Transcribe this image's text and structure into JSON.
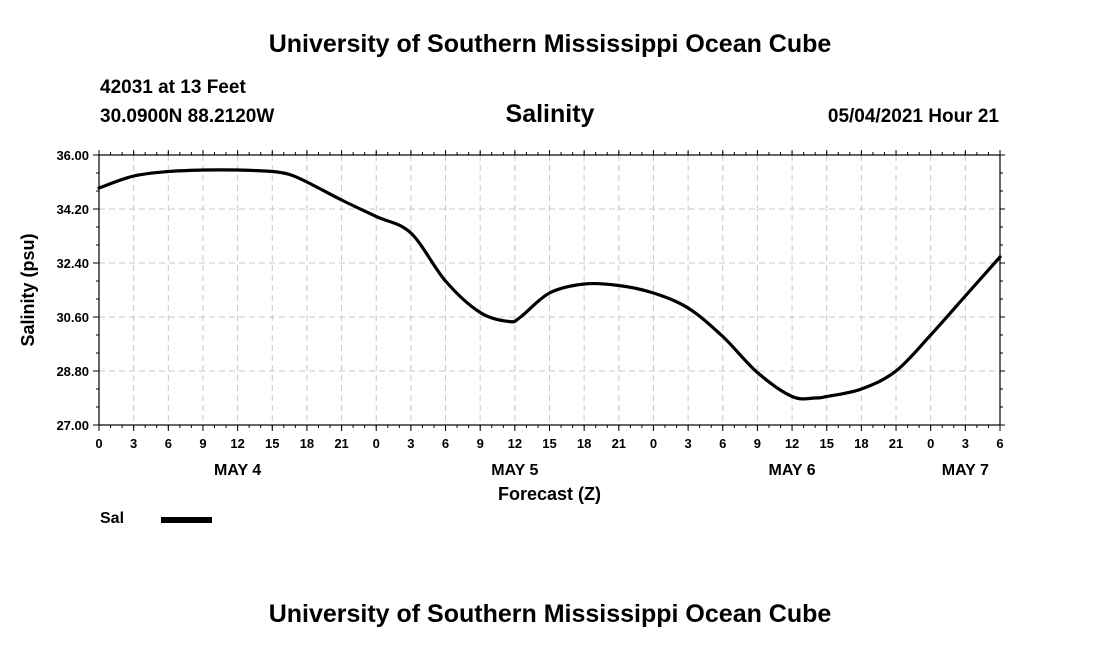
{
  "header": {
    "title": "University of Southern Mississippi Ocean Cube",
    "station": "42031 at 13 Feet",
    "coords": "30.0900N  88.2120W",
    "timestamp": "05/04/2021 Hour 21",
    "footer": "University of Southern Mississippi Ocean Cube"
  },
  "chart_data": {
    "type": "line",
    "title": "Salinity",
    "xlabel": "Forecast (Z)",
    "ylabel": "Salinity (psu)",
    "ylim": [
      27.0,
      36.0
    ],
    "yticks": [
      "27.00",
      "28.80",
      "30.60",
      "32.40",
      "34.20",
      "36.00"
    ],
    "xlim": [
      0,
      78
    ],
    "xtick_step_hours": 3,
    "xtick_labels": [
      "0",
      "3",
      "6",
      "9",
      "12",
      "15",
      "18",
      "21",
      "0",
      "3",
      "6",
      "9",
      "12",
      "15",
      "18",
      "21",
      "0",
      "3",
      "6",
      "9",
      "12",
      "15",
      "18",
      "21",
      "0",
      "3",
      "6"
    ],
    "day_labels": [
      {
        "label": "MAY 4",
        "hour": 12
      },
      {
        "label": "MAY 5",
        "hour": 36
      },
      {
        "label": "MAY 6",
        "hour": 60
      },
      {
        "label": "MAY 7",
        "hour": 75
      }
    ],
    "grid": true,
    "series": [
      {
        "name": "Sal",
        "color": "#000000",
        "x": [
          0,
          3,
          6,
          9,
          12,
          15,
          16.5,
          18,
          21,
          24,
          27,
          30,
          33,
          35.5,
          36.5,
          39,
          42,
          45,
          48,
          51,
          54,
          57,
          60,
          62,
          63,
          66,
          69,
          72,
          75,
          78
        ],
        "y": [
          34.9,
          35.3,
          35.45,
          35.5,
          35.5,
          35.45,
          35.35,
          35.1,
          34.5,
          33.95,
          33.4,
          31.8,
          30.75,
          30.45,
          30.6,
          31.4,
          31.7,
          31.65,
          31.4,
          30.9,
          29.95,
          28.75,
          27.95,
          27.9,
          27.95,
          28.2,
          28.8,
          30.0,
          31.3,
          32.6
        ]
      }
    ],
    "legend_position": "bottom-left"
  }
}
